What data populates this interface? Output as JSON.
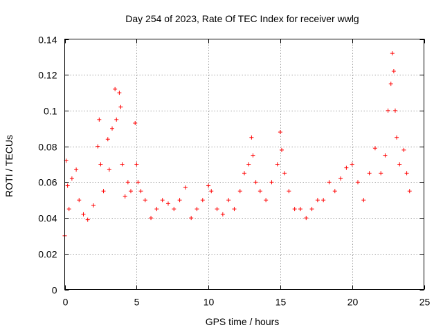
{
  "chart_data": {
    "type": "scatter",
    "title": "Day 254 of 2023, Rate Of TEC Index for receiver wwlg",
    "xlabel": "GPS time / hours",
    "ylabel": "ROTI / TECUs",
    "xlim": [
      0,
      25
    ],
    "ylim": [
      0,
      0.14
    ],
    "x_ticks": [
      0,
      5,
      10,
      15,
      20,
      25
    ],
    "y_ticks": [
      0,
      0.02,
      0.04,
      0.06,
      0.08,
      0.1,
      0.12,
      0.14
    ],
    "x_tick_labels": [
      "0",
      "5",
      "10",
      "15",
      "20",
      "25"
    ],
    "y_tick_labels": [
      "0",
      "0.02",
      "0.04",
      "0.06",
      "0.08",
      "0.1",
      "0.12",
      "0.14"
    ],
    "grid": true,
    "marker": "+",
    "color": "#ff0000",
    "series": [
      {
        "name": "ROTI",
        "x": [
          0.0,
          0.1,
          0.2,
          0.3,
          0.5,
          0.8,
          1.0,
          1.3,
          1.6,
          2.0,
          2.3,
          2.4,
          2.5,
          2.7,
          3.0,
          3.1,
          3.3,
          3.5,
          3.6,
          3.8,
          3.9,
          4.0,
          4.2,
          4.4,
          4.6,
          4.9,
          5.0,
          5.1,
          5.3,
          5.6,
          6.0,
          6.4,
          6.8,
          7.2,
          7.6,
          8.0,
          8.4,
          8.8,
          9.2,
          9.6,
          10.0,
          10.2,
          10.6,
          11.0,
          11.4,
          11.8,
          12.2,
          12.5,
          12.8,
          13.0,
          13.1,
          13.3,
          13.6,
          14.0,
          14.4,
          14.8,
          15.0,
          15.1,
          15.3,
          15.6,
          16.0,
          16.4,
          16.8,
          17.2,
          17.6,
          18.0,
          18.4,
          18.8,
          19.2,
          19.6,
          20.0,
          20.4,
          20.8,
          21.2,
          21.6,
          22.0,
          22.3,
          22.5,
          22.7,
          22.8,
          22.9,
          23.0,
          23.1,
          23.3,
          23.6,
          23.8,
          24.0
        ],
        "y": [
          0.03,
          0.072,
          0.058,
          0.045,
          0.062,
          0.067,
          0.05,
          0.042,
          0.039,
          0.047,
          0.08,
          0.095,
          0.07,
          0.055,
          0.084,
          0.067,
          0.09,
          0.112,
          0.095,
          0.11,
          0.102,
          0.07,
          0.052,
          0.06,
          0.055,
          0.093,
          0.07,
          0.06,
          0.055,
          0.05,
          0.04,
          0.045,
          0.05,
          0.048,
          0.045,
          0.05,
          0.057,
          0.04,
          0.045,
          0.05,
          0.058,
          0.055,
          0.045,
          0.042,
          0.05,
          0.045,
          0.055,
          0.065,
          0.07,
          0.085,
          0.075,
          0.06,
          0.055,
          0.05,
          0.06,
          0.07,
          0.088,
          0.078,
          0.065,
          0.055,
          0.045,
          0.045,
          0.04,
          0.045,
          0.05,
          0.05,
          0.06,
          0.055,
          0.062,
          0.068,
          0.07,
          0.06,
          0.05,
          0.065,
          0.079,
          0.065,
          0.075,
          0.1,
          0.115,
          0.132,
          0.122,
          0.1,
          0.085,
          0.07,
          0.078,
          0.065,
          0.055
        ]
      }
    ]
  }
}
